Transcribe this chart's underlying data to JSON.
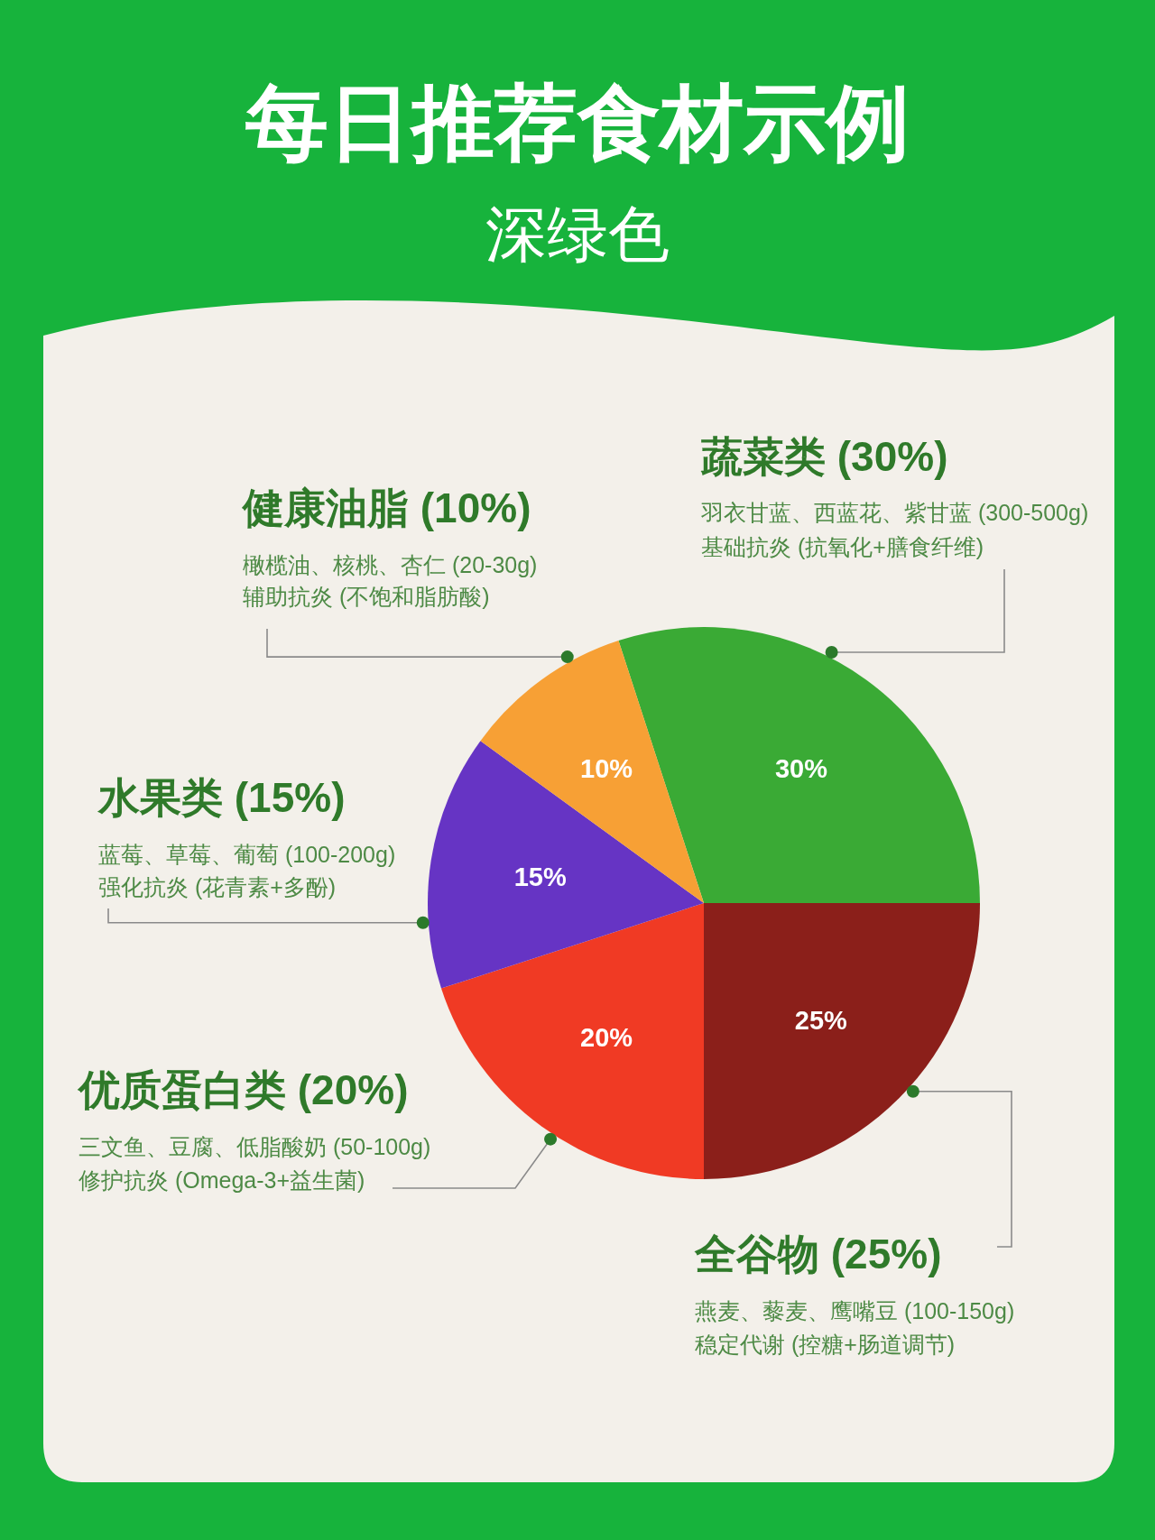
{
  "chart_data": {
    "type": "pie",
    "title": "每日推荐食材示例",
    "subtitle": "深绿色",
    "categories": [
      "蔬菜类 (30%)",
      "全谷物 (25%)",
      "优质蛋白类 (20%)",
      "水果类 (15%)",
      "健康油脂 (10%)"
    ],
    "values": [
      30,
      25,
      20,
      15,
      10
    ],
    "colors": [
      "#3aaa35",
      "#8b1f1a",
      "#f03a24",
      "#6634c4",
      "#f7a035"
    ],
    "value_labels": [
      "30%",
      "25%",
      "20%",
      "15%",
      "10%"
    ],
    "annotations": [
      "羽衣甘蓝、西蓝花、紫甘蓝 (300-500g)",
      "基础抗炎 (抗氧化+膳食纤维)",
      "燕麦、藜麦、鹰嘴豆 (100-150g)",
      "稳定代谢 (控糖+肠道调节)",
      "三文鱼、豆腐、低脂酸奶 (50-100g)",
      "修护抗炎 (Omega-3+益生菌)",
      "蓝莓、草莓、葡萄 (100-200g)",
      "强化抗炎 (花青素+多酚)",
      "橄榄油、核桃、杏仁 (20-30g)",
      "辅助抗炎 (不饱和脂肪酸)"
    ]
  }
}
